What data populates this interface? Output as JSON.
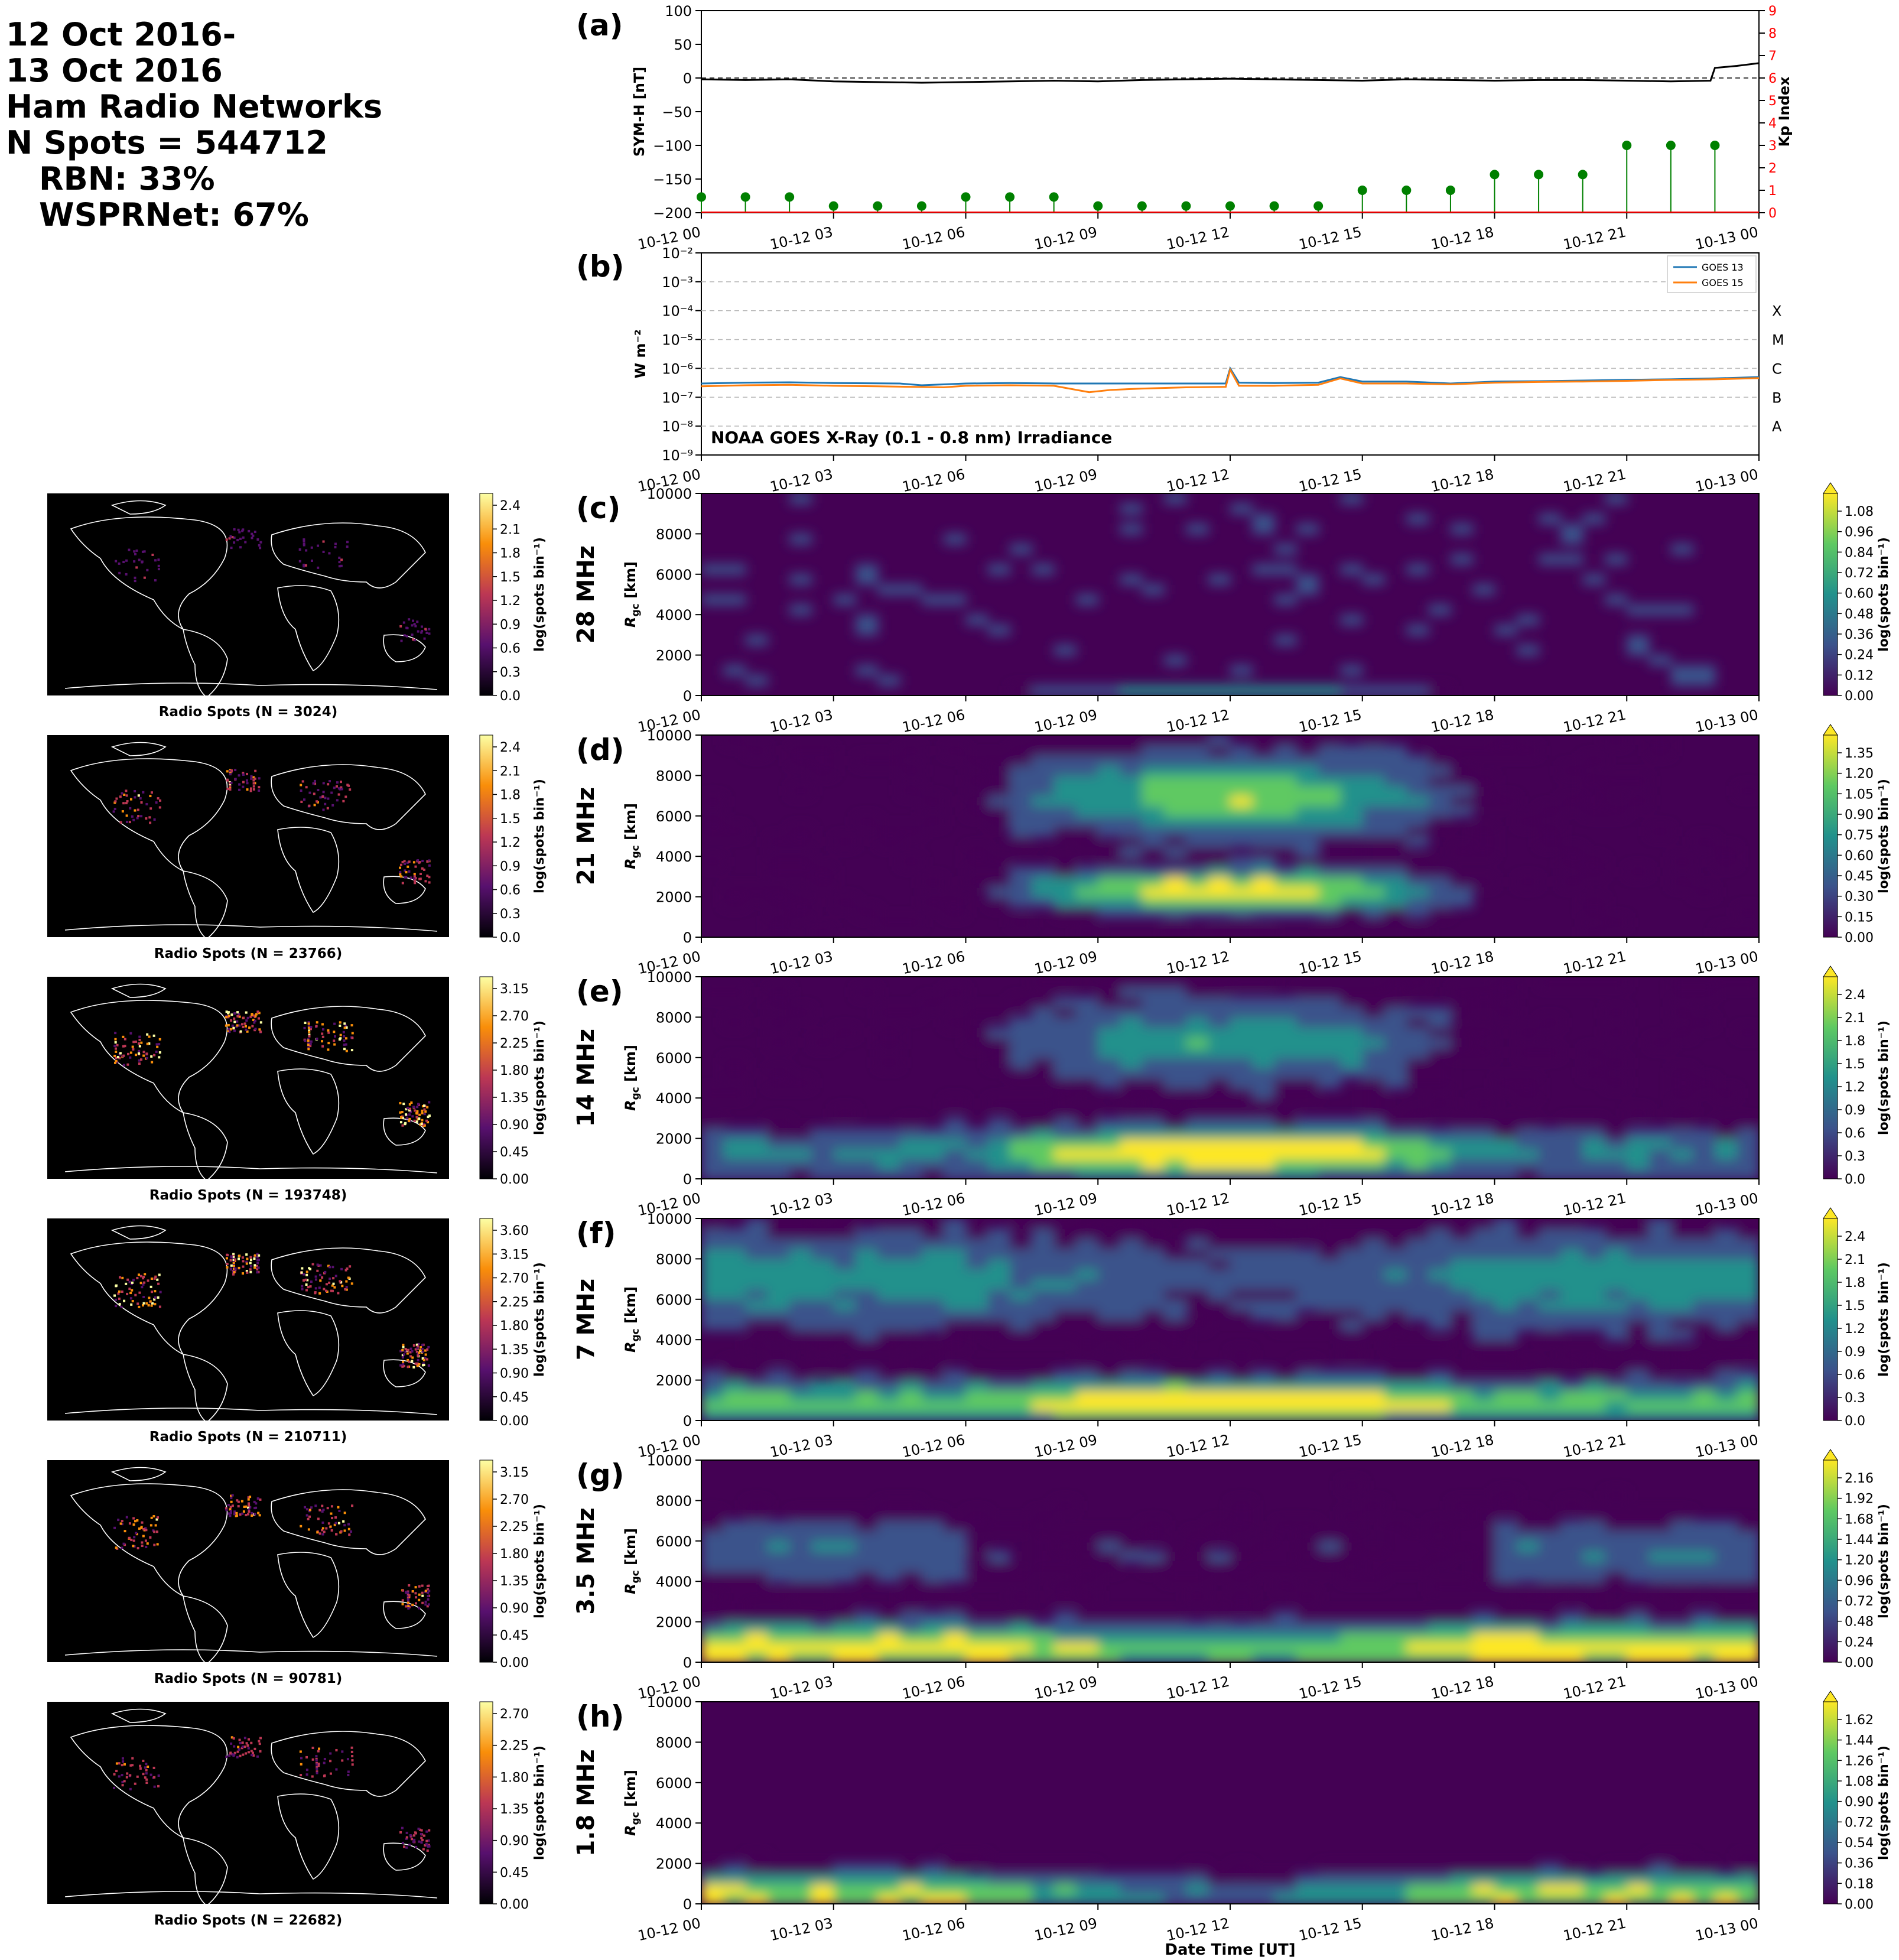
{
  "header": {
    "lines": [
      "12 Oct 2016-",
      "13 Oct 2016",
      "Ham Radio Networks",
      "N Spots = 544712",
      "RBN: 33%",
      "WSPRNet: 67%"
    ]
  },
  "time_ticks": [
    "10-12 00",
    "10-12 03",
    "10-12 06",
    "10-12 09",
    "10-12 12",
    "10-12 15",
    "10-12 18",
    "10-12 21",
    "10-13 00"
  ],
  "xlabel": "Date Time [UT]",
  "colors": {
    "symh": "#000000",
    "kp": "#008000",
    "goes13": "#1f77b4",
    "goes15": "#ff7f0e",
    "kp_axis": "#ff0000",
    "map_bg": "#000000",
    "heatmap_bg": "#440154"
  },
  "chart_data": [
    {
      "type": "line",
      "panel": "(a)",
      "ylabel": "SYM-H [nT]",
      "ylim": [
        -200,
        100
      ],
      "yticks": [
        "100",
        "50",
        "0",
        "−50",
        "−100",
        "−150",
        "−200"
      ],
      "x_hours": [
        0,
        1,
        2,
        3,
        4,
        5,
        6,
        7,
        8,
        9,
        10,
        11,
        12,
        13,
        14,
        15,
        16,
        17,
        18,
        19,
        20,
        21,
        22,
        22.9,
        23,
        23.5,
        24
      ],
      "series": [
        {
          "values": [
            -2,
            -3,
            -2,
            -5,
            -6,
            -7,
            -6,
            -5,
            -4,
            -5,
            -3,
            -2,
            -1,
            -2,
            -3,
            -4,
            -2,
            -3,
            -4,
            -3,
            -3,
            -4,
            -5,
            -4,
            15,
            18,
            22
          ]
        }
      ],
      "y2label": "Kp Index",
      "y2lim": [
        0,
        9
      ],
      "y2ticks": [
        "0",
        "1",
        "2",
        "3",
        "4",
        "5",
        "6",
        "7",
        "8",
        "9"
      ],
      "kp": {
        "x_hours": [
          0,
          1,
          2,
          3,
          4,
          5,
          6,
          7,
          8,
          9,
          10,
          11,
          12,
          13,
          14,
          15,
          16,
          17,
          18,
          19,
          20,
          21,
          22,
          23
        ],
        "values": [
          0.7,
          0.7,
          0.7,
          0.3,
          0.3,
          0.3,
          0.7,
          0.7,
          0.7,
          0.3,
          0.3,
          0.3,
          0.3,
          0.3,
          0.3,
          1.0,
          1.0,
          1.0,
          1.7,
          1.7,
          1.7,
          3.0,
          3.0,
          3.0
        ]
      },
      "zero_line": "dashed"
    },
    {
      "type": "line",
      "panel": "(b)",
      "ylabel": "W m⁻²",
      "yscale": "log",
      "ylim": [
        1e-09,
        0.01
      ],
      "yticks": [
        "10⁻²",
        "10⁻³",
        "10⁻⁴",
        "10⁻⁵",
        "10⁻⁶",
        "10⁻⁷",
        "10⁻⁸",
        "10⁻⁹"
      ],
      "flare_classes": [
        "X",
        "M",
        "C",
        "B",
        "A"
      ],
      "annotation": "NOAA GOES X-Ray (0.1 - 0.8 nm) Irradiance",
      "legend": "top-right",
      "grid": "horizontal-dashed",
      "series": [
        {
          "name": "GOES 13",
          "x_hours": [
            0,
            1,
            2,
            3,
            4.5,
            5,
            6,
            7,
            8,
            9,
            10,
            11,
            11.9,
            12,
            12.2,
            13,
            14,
            14.5,
            15,
            16,
            17,
            18,
            19,
            20,
            21,
            22,
            23,
            24
          ],
          "values": [
            3e-07,
            3.2e-07,
            3.3e-07,
            3.1e-07,
            3e-07,
            2.6e-07,
            3e-07,
            3.1e-07,
            3e-07,
            3e-07,
            3e-07,
            3e-07,
            3e-07,
            1e-06,
            3.2e-07,
            3.1e-07,
            3.2e-07,
            5e-07,
            3.5e-07,
            3.5e-07,
            3e-07,
            3.5e-07,
            3.6e-07,
            3.8e-07,
            4e-07,
            4.2e-07,
            4.5e-07,
            5e-07
          ]
        },
        {
          "name": "GOES 15",
          "x_hours": [
            0,
            1,
            2,
            3,
            4,
            5.5,
            6,
            7,
            8,
            8.8,
            9.3,
            10,
            11,
            11.9,
            12,
            12.2,
            13,
            14,
            14.5,
            15,
            16,
            17,
            18,
            19,
            20,
            21,
            22,
            23,
            24
          ],
          "values": [
            2.4e-07,
            2.6e-07,
            2.7e-07,
            2.5e-07,
            2.4e-07,
            2.2e-07,
            2.5e-07,
            2.6e-07,
            2.5e-07,
            1.5e-07,
            1.8e-07,
            2e-07,
            2.2e-07,
            2.3e-07,
            9e-07,
            2.5e-07,
            2.5e-07,
            2.7e-07,
            4.5e-07,
            3e-07,
            3e-07,
            2.8e-07,
            3.2e-07,
            3.4e-07,
            3.5e-07,
            3.7e-07,
            4e-07,
            4.2e-07,
            4.6e-07
          ]
        }
      ]
    },
    {
      "type": "heatmap",
      "panel": "(c)",
      "band": "28 MHz",
      "ylabel": "R",
      "ylabel_sub": "gc",
      "ylabel_unit": " [km]",
      "ylim": [
        0,
        10000
      ],
      "yticks": [
        "0",
        "2000",
        "4000",
        "6000",
        "8000",
        "10000"
      ],
      "cbar_label": "log(spots bin⁻¹)",
      "cbar_ticks": [
        "0.00",
        "0.12",
        "0.24",
        "0.36",
        "0.48",
        "0.60",
        "0.72",
        "0.84",
        "0.96",
        "1.08"
      ],
      "map_title": "Radio Spots (N = 3024)",
      "map_cbar_ticks": [
        "0.0",
        "0.3",
        "0.6",
        "0.9",
        "1.2",
        "1.5",
        "1.8",
        "2.1",
        "2.4"
      ],
      "intensity": 0.25
    },
    {
      "type": "heatmap",
      "panel": "(d)",
      "band": "21 MHz",
      "ylabel": "R",
      "ylabel_sub": "gc",
      "ylabel_unit": " [km]",
      "ylim": [
        0,
        10000
      ],
      "yticks": [
        "0",
        "2000",
        "4000",
        "6000",
        "8000",
        "10000"
      ],
      "cbar_label": "log(spots bin⁻¹)",
      "cbar_ticks": [
        "0.00",
        "0.15",
        "0.30",
        "0.45",
        "0.60",
        "0.75",
        "0.90",
        "1.05",
        "1.20",
        "1.35"
      ],
      "map_title": "Radio Spots (N = 23766)",
      "map_cbar_ticks": [
        "0.0",
        "0.3",
        "0.6",
        "0.9",
        "1.2",
        "1.5",
        "1.8",
        "2.1",
        "2.4"
      ],
      "intensity": 0.55
    },
    {
      "type": "heatmap",
      "panel": "(e)",
      "band": "14 MHz",
      "ylabel": "R",
      "ylabel_sub": "gc",
      "ylabel_unit": " [km]",
      "ylim": [
        0,
        10000
      ],
      "yticks": [
        "0",
        "2000",
        "4000",
        "6000",
        "8000",
        "10000"
      ],
      "cbar_label": "log(spots bin⁻¹)",
      "cbar_ticks": [
        "0.0",
        "0.3",
        "0.6",
        "0.9",
        "1.2",
        "1.5",
        "1.8",
        "2.1",
        "2.4"
      ],
      "map_title": "Radio Spots (N = 193748)",
      "map_cbar_ticks": [
        "0.00",
        "0.45",
        "0.90",
        "1.35",
        "1.80",
        "2.25",
        "2.70",
        "3.15"
      ],
      "intensity": 0.85
    },
    {
      "type": "heatmap",
      "panel": "(f)",
      "band": "7 MHz",
      "ylabel": "R",
      "ylabel_sub": "gc",
      "ylabel_unit": " [km]",
      "ylim": [
        0,
        10000
      ],
      "yticks": [
        "0",
        "2000",
        "4000",
        "6000",
        "8000",
        "10000"
      ],
      "cbar_label": "log(spots bin⁻¹)",
      "cbar_ticks": [
        "0.0",
        "0.3",
        "0.6",
        "0.9",
        "1.2",
        "1.5",
        "1.8",
        "2.1",
        "2.4"
      ],
      "map_title": "Radio Spots (N = 210711)",
      "map_cbar_ticks": [
        "0.00",
        "0.45",
        "0.90",
        "1.35",
        "1.80",
        "2.25",
        "2.70",
        "3.15",
        "3.60"
      ],
      "intensity": 0.9
    },
    {
      "type": "heatmap",
      "panel": "(g)",
      "band": "3.5 MHz",
      "ylabel": "R",
      "ylabel_sub": "gc",
      "ylabel_unit": " [km]",
      "ylim": [
        0,
        10000
      ],
      "yticks": [
        "0",
        "2000",
        "4000",
        "6000",
        "8000",
        "10000"
      ],
      "cbar_label": "log(spots bin⁻¹)",
      "cbar_ticks": [
        "0.00",
        "0.24",
        "0.48",
        "0.72",
        "0.96",
        "1.20",
        "1.44",
        "1.68",
        "1.92",
        "2.16"
      ],
      "map_title": "Radio Spots (N = 90781)",
      "map_cbar_ticks": [
        "0.00",
        "0.45",
        "0.90",
        "1.35",
        "1.80",
        "2.25",
        "2.70",
        "3.15"
      ],
      "intensity": 0.65
    },
    {
      "type": "heatmap",
      "panel": "(h)",
      "band": "1.8 MHz",
      "ylabel": "R",
      "ylabel_sub": "gc",
      "ylabel_unit": " [km]",
      "ylim": [
        0,
        10000
      ],
      "yticks": [
        "0",
        "2000",
        "4000",
        "6000",
        "8000",
        "10000"
      ],
      "cbar_label": "log(spots bin⁻¹)",
      "cbar_ticks": [
        "0.00",
        "0.18",
        "0.36",
        "0.54",
        "0.72",
        "0.90",
        "1.08",
        "1.26",
        "1.44",
        "1.62"
      ],
      "map_title": "Radio Spots (N = 22682)",
      "map_cbar_ticks": [
        "0.00",
        "0.45",
        "0.90",
        "1.35",
        "1.80",
        "2.25",
        "2.70"
      ],
      "intensity": 0.5
    }
  ]
}
